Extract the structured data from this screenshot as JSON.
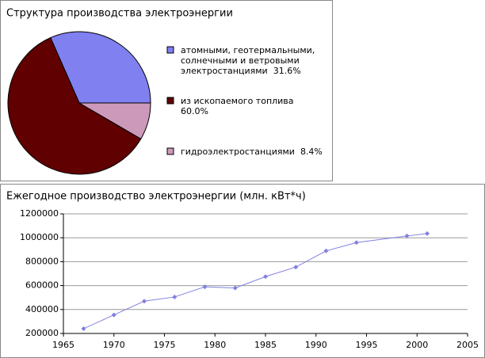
{
  "chart_data": [
    {
      "type": "pie",
      "title": "Структура производства электроэнергии",
      "categories": [
        "атомными, геотермальными, солнечными и ветровыми электростанциями",
        "из ископаемого топлива",
        "гидроэлектростанциями"
      ],
      "values": [
        31.6,
        60.0,
        8.4
      ],
      "value_labels": [
        "31.6%",
        "60.0%",
        "8.4%"
      ],
      "colors": [
        "#8080f0",
        "#600000",
        "#cc99bb"
      ]
    },
    {
      "type": "line",
      "title": "Ежегодное производство электроэнергии (млн. кВт*ч)",
      "x": [
        1967,
        1970,
        1973,
        1976,
        1979,
        1982,
        1985,
        1988,
        1991,
        1994,
        1999,
        2001
      ],
      "values": [
        240000,
        355000,
        470000,
        505000,
        590000,
        580000,
        675000,
        755000,
        890000,
        960000,
        1015000,
        1035000
      ],
      "color": "#8080e0",
      "xlim": [
        1965,
        2005
      ],
      "xticks": [
        1965,
        1970,
        1975,
        1980,
        1985,
        1990,
        1995,
        2000,
        2005
      ],
      "ylim": [
        200000,
        1200000
      ],
      "yticks": [
        200000,
        400000,
        600000,
        800000,
        1000000,
        1200000
      ],
      "grid": true
    }
  ]
}
